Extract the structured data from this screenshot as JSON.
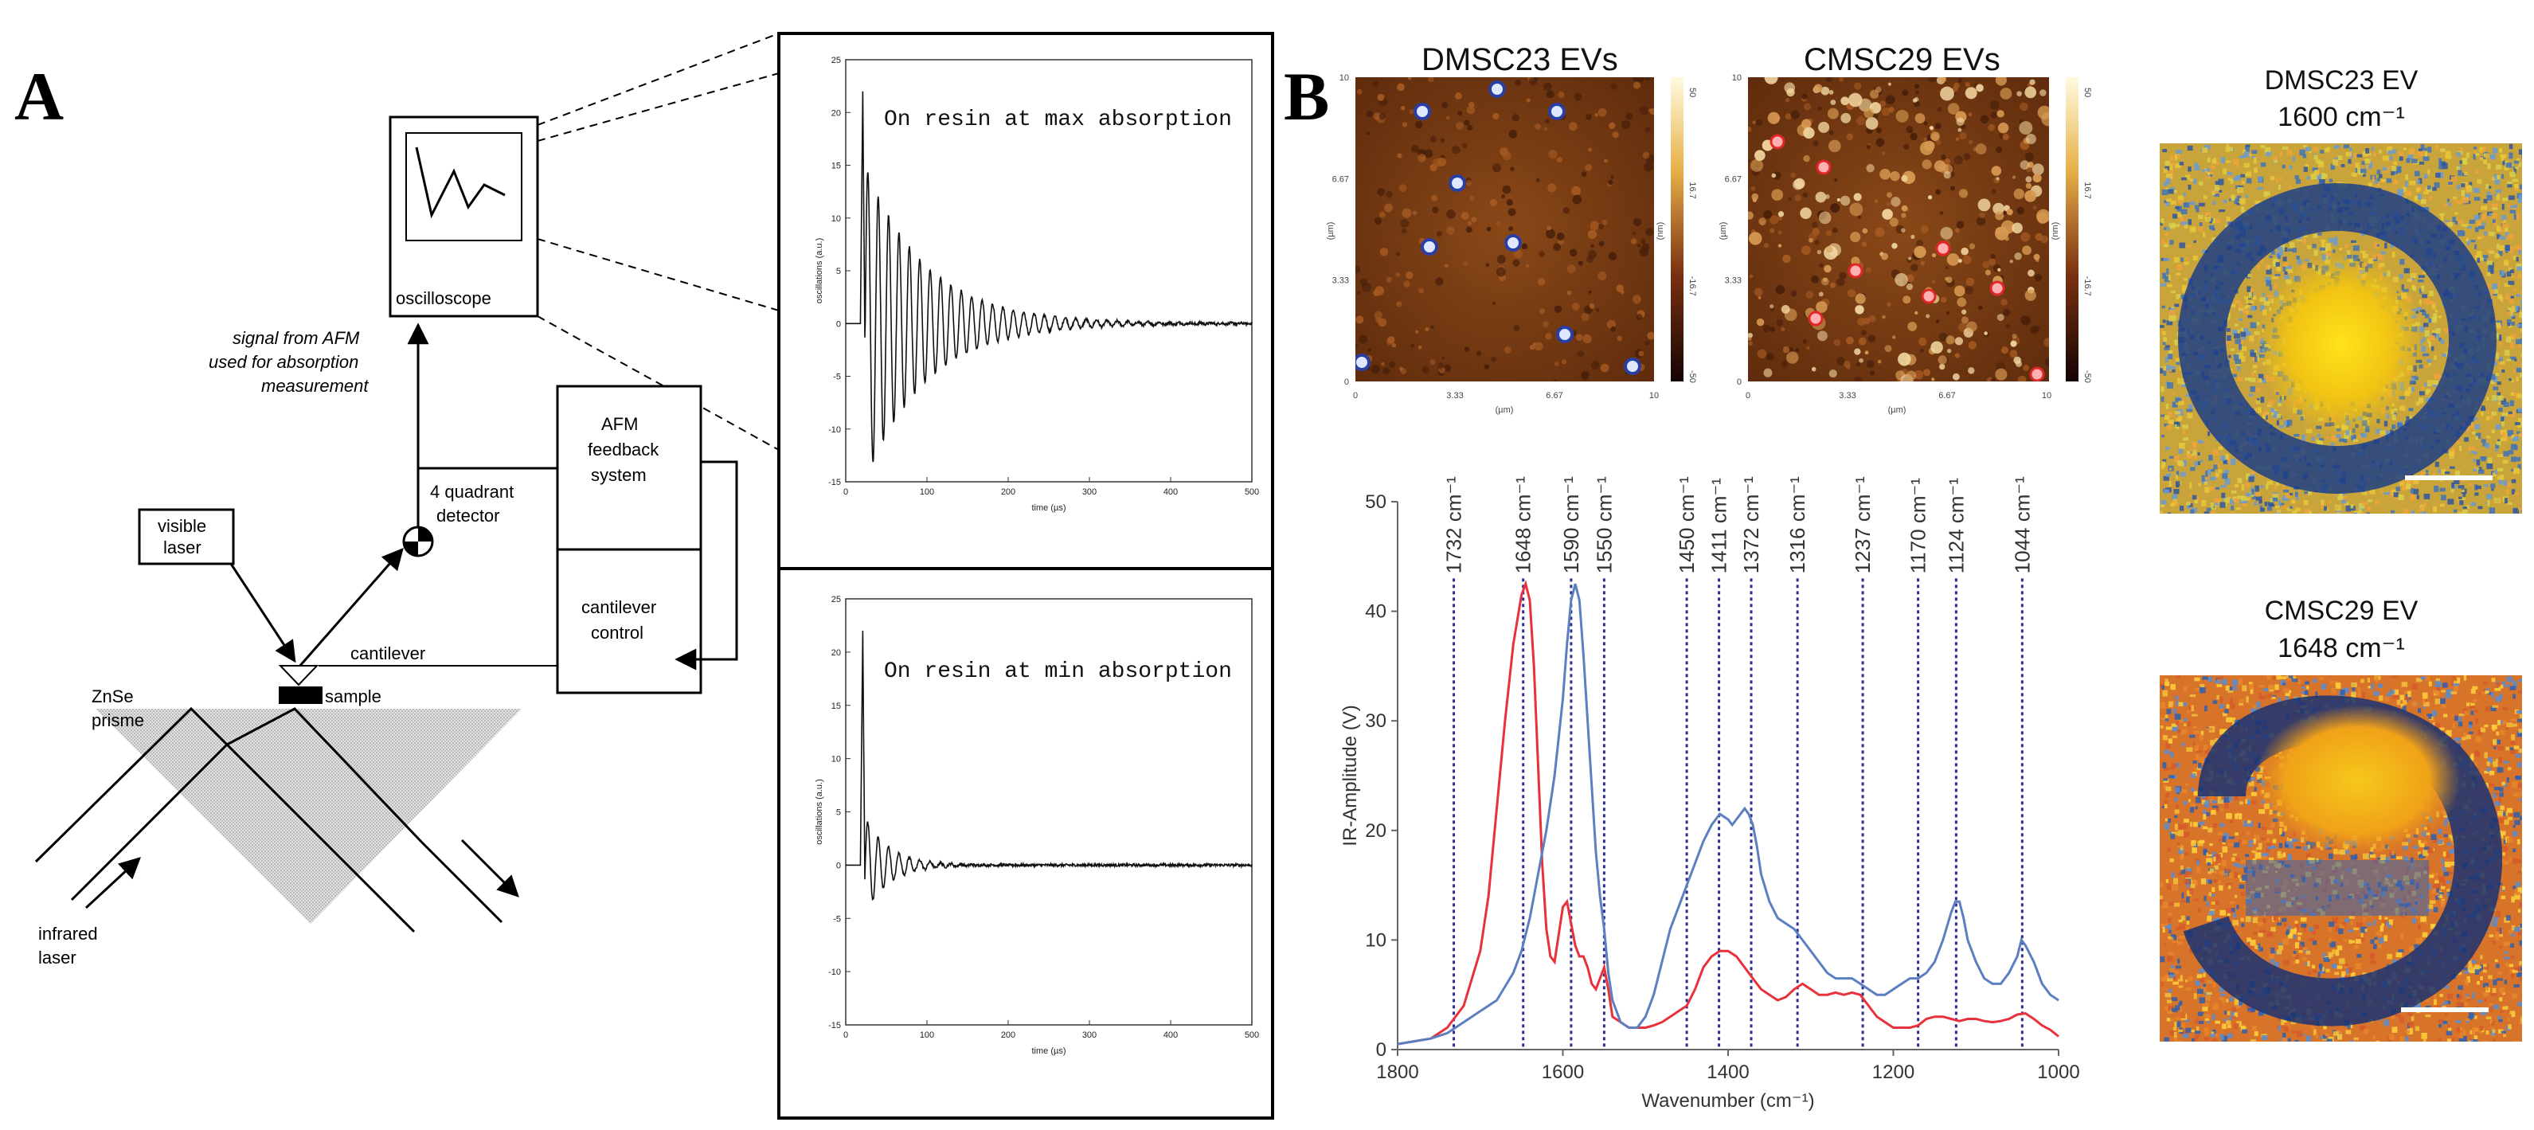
{
  "panels": {
    "a_label": "A",
    "b_label": "B"
  },
  "schematic": {
    "oscilloscope": "oscilloscope",
    "signal_note_1": "signal from AFM",
    "signal_note_2": "used for absorption",
    "signal_note_3": "measurement",
    "feedback_1": "AFM",
    "feedback_2": "feedback",
    "feedback_3": "system",
    "detector_1": "4 quadrant",
    "detector_2": "detector",
    "visible_laser_1": "visible",
    "visible_laser_2": "laser",
    "cantilever_control_1": "cantilever",
    "cantilever_control_2": "control",
    "cantilever": "cantilever",
    "sample": "sample",
    "prism_1": "ZnSe",
    "prism_2": "prisme",
    "infrared_1": "infrared",
    "infrared_2": "laser"
  },
  "oscillation_plots": {
    "top_label": "On resin at max absorption",
    "bottom_label": "On resin at min absorption",
    "ylabel": "oscillations (a.u.)",
    "xlabel": "time (µs)",
    "y_ticks": [
      "25",
      "20",
      "15",
      "10",
      "5",
      "0",
      "-5",
      "-10",
      "-15"
    ],
    "x_ticks": [
      "0",
      "100",
      "200",
      "300",
      "400",
      "500"
    ]
  },
  "afm_images": {
    "left_title": "DMSC23 EVs",
    "right_title": "CMSC29 EVs",
    "y_ticks": [
      "10",
      "6.67",
      "3.33",
      "0"
    ],
    "x_ticks": [
      "0",
      "3.33",
      "6.67",
      "10"
    ],
    "scale_ticks": [
      "50",
      "16.7",
      "-16.7",
      "-50"
    ],
    "axis_unit": "(µm)",
    "scale_unit": "(nm)"
  },
  "ir_maps": {
    "top_title_1": "DMSC23 EV",
    "top_title_2": "1600 cm⁻¹",
    "bottom_title_1": "CMSC29 EV",
    "bottom_title_2": "1648 cm⁻¹"
  },
  "chart_data": {
    "type": "line",
    "title": "",
    "xlabel": "Wavenumber (cm⁻¹)",
    "ylabel": "IR-Amplitude (V)",
    "xlim": [
      1800,
      1000
    ],
    "ylim": [
      0,
      50
    ],
    "x_ticks": [
      1800,
      1600,
      1400,
      1200,
      1000
    ],
    "y_ticks": [
      0,
      10,
      20,
      30,
      40,
      50
    ],
    "peak_lines": [
      {
        "position": 1732,
        "label": "1732 cm⁻¹"
      },
      {
        "position": 1648,
        "label": "1648 cm⁻¹"
      },
      {
        "position": 1590,
        "label": "1590 cm⁻¹"
      },
      {
        "position": 1550,
        "label": "1550 cm⁻¹"
      },
      {
        "position": 1450,
        "label": "1450 cm⁻¹"
      },
      {
        "position": 1411,
        "label": "1411 cm⁻¹"
      },
      {
        "position": 1372,
        "label": "1372 cm⁻¹"
      },
      {
        "position": 1316,
        "label": "1316 cm⁻¹"
      },
      {
        "position": 1237,
        "label": "1237 cm⁻¹"
      },
      {
        "position": 1170,
        "label": "1170 cm⁻¹"
      },
      {
        "position": 1124,
        "label": "1124 cm⁻¹"
      },
      {
        "position": 1044,
        "label": "1044 cm⁻¹"
      }
    ],
    "series": [
      {
        "name": "red",
        "color": "#e8313a",
        "x": [
          1800,
          1760,
          1740,
          1720,
          1700,
          1690,
          1680,
          1670,
          1660,
          1650,
          1645,
          1640,
          1635,
          1630,
          1625,
          1620,
          1615,
          1610,
          1605,
          1600,
          1595,
          1590,
          1585,
          1580,
          1575,
          1570,
          1565,
          1560,
          1555,
          1550,
          1545,
          1540,
          1530,
          1520,
          1510,
          1500,
          1490,
          1480,
          1470,
          1460,
          1450,
          1440,
          1430,
          1420,
          1410,
          1400,
          1390,
          1380,
          1370,
          1360,
          1350,
          1340,
          1330,
          1320,
          1310,
          1300,
          1290,
          1280,
          1270,
          1260,
          1250,
          1240,
          1230,
          1220,
          1210,
          1200,
          1190,
          1180,
          1170,
          1160,
          1150,
          1140,
          1130,
          1120,
          1110,
          1100,
          1090,
          1080,
          1070,
          1060,
          1050,
          1040,
          1030,
          1020,
          1010,
          1000
        ],
        "y": [
          0.5,
          1.0,
          2.0,
          4.0,
          9.0,
          14.0,
          22.0,
          30.0,
          37.0,
          41.5,
          42.5,
          41.0,
          35.0,
          26.0,
          17.0,
          11.0,
          8.5,
          8.0,
          10.5,
          13.0,
          13.5,
          11.5,
          9.5,
          8.5,
          8.5,
          7.5,
          6.0,
          5.5,
          6.5,
          7.5,
          5.5,
          3.0,
          2.5,
          2.0,
          2.0,
          2.0,
          2.2,
          2.5,
          3.0,
          3.5,
          4.0,
          5.5,
          7.5,
          8.5,
          9.0,
          9.0,
          8.5,
          7.5,
          6.5,
          5.5,
          5.0,
          4.5,
          4.8,
          5.5,
          6.0,
          5.5,
          5.0,
          5.0,
          5.2,
          5.0,
          5.2,
          5.0,
          4.0,
          3.0,
          2.5,
          2.0,
          2.0,
          2.0,
          2.2,
          2.8,
          3.0,
          3.0,
          2.8,
          2.6,
          2.8,
          2.8,
          2.6,
          2.5,
          2.6,
          2.8,
          3.2,
          3.3,
          2.8,
          2.2,
          1.8,
          1.2
        ]
      },
      {
        "name": "blue",
        "color": "#5b7fc0",
        "x": [
          1800,
          1760,
          1740,
          1720,
          1700,
          1680,
          1660,
          1650,
          1640,
          1630,
          1620,
          1610,
          1600,
          1595,
          1590,
          1585,
          1580,
          1575,
          1570,
          1565,
          1560,
          1555,
          1550,
          1545,
          1540,
          1530,
          1520,
          1510,
          1500,
          1490,
          1480,
          1470,
          1460,
          1450,
          1440,
          1430,
          1420,
          1410,
          1400,
          1395,
          1390,
          1385,
          1380,
          1375,
          1370,
          1365,
          1360,
          1350,
          1340,
          1330,
          1320,
          1310,
          1300,
          1290,
          1280,
          1270,
          1260,
          1250,
          1240,
          1230,
          1220,
          1210,
          1200,
          1190,
          1180,
          1170,
          1160,
          1150,
          1140,
          1130,
          1125,
          1120,
          1115,
          1110,
          1100,
          1090,
          1080,
          1070,
          1060,
          1050,
          1045,
          1040,
          1030,
          1020,
          1010,
          1000
        ],
        "y": [
          0.5,
          1.0,
          1.5,
          2.5,
          3.5,
          4.5,
          7.0,
          9.0,
          12.0,
          16.0,
          20.0,
          25.0,
          32.0,
          37.0,
          41.0,
          42.5,
          41.0,
          36.0,
          30.0,
          24.0,
          18.0,
          14.0,
          11.0,
          7.0,
          4.5,
          2.5,
          2.0,
          2.0,
          3.0,
          5.0,
          8.0,
          11.0,
          13.0,
          15.0,
          17.0,
          19.0,
          20.5,
          21.5,
          21.0,
          20.5,
          21.0,
          21.5,
          22.0,
          21.5,
          20.5,
          18.5,
          16.0,
          13.5,
          12.0,
          11.5,
          11.0,
          10.0,
          9.0,
          8.0,
          7.0,
          6.5,
          6.5,
          6.5,
          6.0,
          5.5,
          5.0,
          5.0,
          5.5,
          6.0,
          6.5,
          6.5,
          7.0,
          8.0,
          10.0,
          12.5,
          13.5,
          13.5,
          12.0,
          10.0,
          8.0,
          6.5,
          6.0,
          6.0,
          7.0,
          8.5,
          10.0,
          9.5,
          8.0,
          6.0,
          5.0,
          4.5
        ]
      }
    ]
  }
}
